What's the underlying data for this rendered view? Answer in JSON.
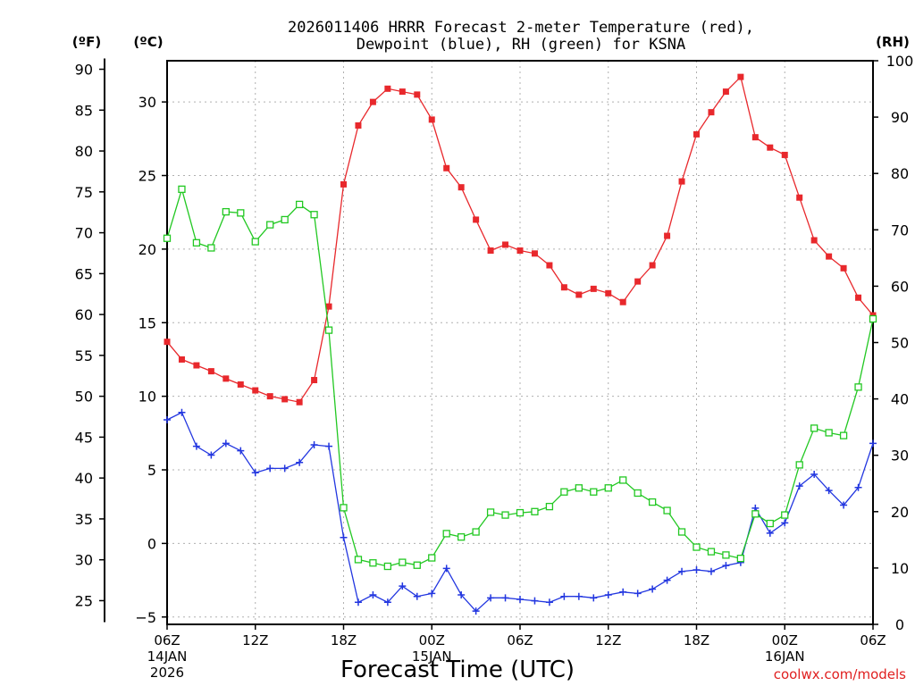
{
  "chart_data": {
    "type": "line",
    "title_line1": "2026011406 HRRR Forecast 2-meter Temperature (red),",
    "title_line2": "Dewpoint (blue), RH (green) for KSNA",
    "xlabel": "Forecast Time (UTC)",
    "credit": "coolwx.com/models",
    "left_unit_f": "(ºF)",
    "left_unit_c": "(ºC)",
    "right_unit": "(RH)",
    "xlim_hours": [
      0,
      48
    ],
    "celsius_lim": [
      -5.5,
      32.8
    ],
    "rh_lim": [
      0,
      100
    ],
    "fahrenheit_ticks": [
      "25",
      "30",
      "35",
      "40",
      "45",
      "50",
      "55",
      "60",
      "65",
      "70",
      "75",
      "80",
      "85",
      "90"
    ],
    "celsius_ticks": [
      "−5",
      "0",
      "5",
      "10",
      "15",
      "20",
      "25",
      "30"
    ],
    "rh_ticks": [
      "0",
      "10",
      "20",
      "30",
      "40",
      "50",
      "60",
      "70",
      "80",
      "90",
      "100"
    ],
    "x_ticks": [
      {
        "hour": 0,
        "line1": "06Z",
        "line2": "14JAN",
        "line3": "2026"
      },
      {
        "hour": 6,
        "line1": "12Z",
        "line2": "",
        "line3": ""
      },
      {
        "hour": 12,
        "line1": "18Z",
        "line2": "",
        "line3": ""
      },
      {
        "hour": 18,
        "line1": "00Z",
        "line2": "15JAN",
        "line3": ""
      },
      {
        "hour": 24,
        "line1": "06Z",
        "line2": "",
        "line3": ""
      },
      {
        "hour": 30,
        "line1": "12Z",
        "line2": "",
        "line3": ""
      },
      {
        "hour": 36,
        "line1": "18Z",
        "line2": "",
        "line3": ""
      },
      {
        "hour": 42,
        "line1": "00Z",
        "line2": "16JAN",
        "line3": ""
      },
      {
        "hour": 48,
        "line1": "06Z",
        "line2": "",
        "line3": ""
      }
    ],
    "hours": [
      0,
      1,
      2,
      3,
      4,
      5,
      6,
      7,
      8,
      9,
      10,
      11,
      12,
      13,
      14,
      15,
      16,
      17,
      18,
      19,
      20,
      21,
      22,
      23,
      24,
      25,
      26,
      27,
      28,
      29,
      30,
      31,
      32,
      33,
      34,
      35,
      36,
      37,
      38,
      39,
      40,
      41,
      42,
      43,
      44,
      45,
      46,
      47,
      48
    ],
    "series": [
      {
        "name": "Temperature (°C)",
        "color": "#e8282c",
        "marker": "filled-square",
        "values": [
          13.7,
          12.5,
          12.1,
          11.7,
          11.2,
          10.8,
          10.4,
          10.0,
          9.8,
          9.6,
          11.1,
          16.1,
          24.4,
          28.4,
          30.0,
          30.9,
          30.7,
          30.5,
          28.8,
          25.5,
          24.2,
          22.0,
          19.9,
          20.3,
          19.9,
          19.7,
          18.9,
          17.4,
          16.9,
          17.3,
          17.0,
          16.4,
          17.8,
          18.9,
          20.9,
          24.6,
          27.8,
          29.3,
          30.7,
          31.7,
          27.6,
          26.9,
          26.4,
          23.5,
          20.6,
          19.5,
          18.7,
          16.7,
          15.5
        ]
      },
      {
        "name": "Dewpoint (°C)",
        "color": "#2236e0",
        "marker": "plus",
        "values": [
          8.4,
          8.9,
          6.6,
          6.0,
          6.8,
          6.3,
          4.8,
          5.1,
          5.1,
          5.5,
          6.7,
          6.6,
          0.4,
          -4.0,
          -3.5,
          -4.0,
          -2.9,
          -3.6,
          -3.4,
          -1.7,
          -3.5,
          -4.6,
          -3.7,
          -3.7,
          -3.8,
          -3.9,
          -4.0,
          -3.6,
          -3.6,
          -3.7,
          -3.5,
          -3.3,
          -3.4,
          -3.1,
          -2.5,
          -1.9,
          -1.8,
          -1.9,
          -1.5,
          -1.3,
          2.4,
          0.7,
          1.4,
          3.9,
          4.7,
          3.6,
          2.6,
          3.8,
          6.8
        ]
      },
      {
        "name": "RH (%)",
        "color": "#22c822",
        "marker": "open-square",
        "values": [
          68.5,
          77.2,
          67.7,
          66.8,
          73.2,
          73.0,
          67.9,
          70.9,
          71.8,
          74.5,
          72.7,
          52.2,
          20.7,
          11.5,
          10.9,
          10.3,
          11.0,
          10.5,
          11.8,
          16.1,
          15.5,
          16.4,
          19.9,
          19.4,
          19.8,
          20.0,
          20.9,
          23.5,
          24.2,
          23.5,
          24.2,
          25.6,
          23.3,
          21.7,
          20.2,
          16.4,
          13.7,
          12.9,
          12.3,
          11.7,
          19.6,
          17.9,
          19.4,
          28.3,
          34.8,
          34.0,
          33.5,
          42.1,
          54.2
        ]
      }
    ]
  }
}
